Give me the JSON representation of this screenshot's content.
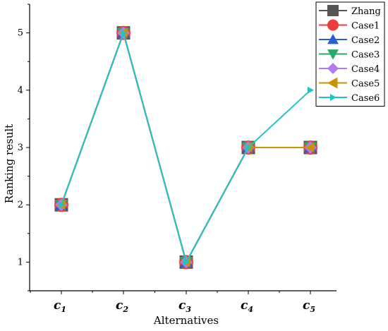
{
  "chart_data": {
    "type": "line",
    "xlabel": "Alternatives",
    "ylabel": "Ranking result",
    "categories": [
      {
        "base": "c",
        "sub": "1"
      },
      {
        "base": "c",
        "sub": "2"
      },
      {
        "base": "c",
        "sub": "3"
      },
      {
        "base": "c",
        "sub": "4"
      },
      {
        "base": "c",
        "sub": "5"
      }
    ],
    "yticks": [
      "1",
      "2",
      "3",
      "4",
      "5"
    ],
    "ylim": [
      0.5,
      5.5
    ],
    "grid": false,
    "legend": "top-right",
    "series": [
      {
        "name": "Zhang",
        "values": [
          2,
          5,
          1,
          3,
          3
        ],
        "color": "#555555",
        "marker": "square"
      },
      {
        "name": "Case1",
        "values": [
          2,
          5,
          1,
          3,
          3
        ],
        "color": "#ef3b3b",
        "marker": "circle"
      },
      {
        "name": "Case2",
        "values": [
          2,
          5,
          1,
          3,
          3
        ],
        "color": "#2a5fcf",
        "marker": "triangle-up"
      },
      {
        "name": "Case3",
        "values": [
          2,
          5,
          1,
          3,
          3
        ],
        "color": "#2aa86a",
        "marker": "triangle-down"
      },
      {
        "name": "Case4",
        "values": [
          2,
          5,
          1,
          3,
          3
        ],
        "color": "#b07ee8",
        "marker": "diamond"
      },
      {
        "name": "Case5",
        "values": [
          2,
          5,
          1,
          3,
          3
        ],
        "color": "#c99400",
        "marker": "triangle-left"
      },
      {
        "name": "Case6",
        "values": [
          2,
          5,
          1,
          3,
          4
        ],
        "color": "#22c3c3",
        "marker": "triangle-right"
      }
    ]
  }
}
